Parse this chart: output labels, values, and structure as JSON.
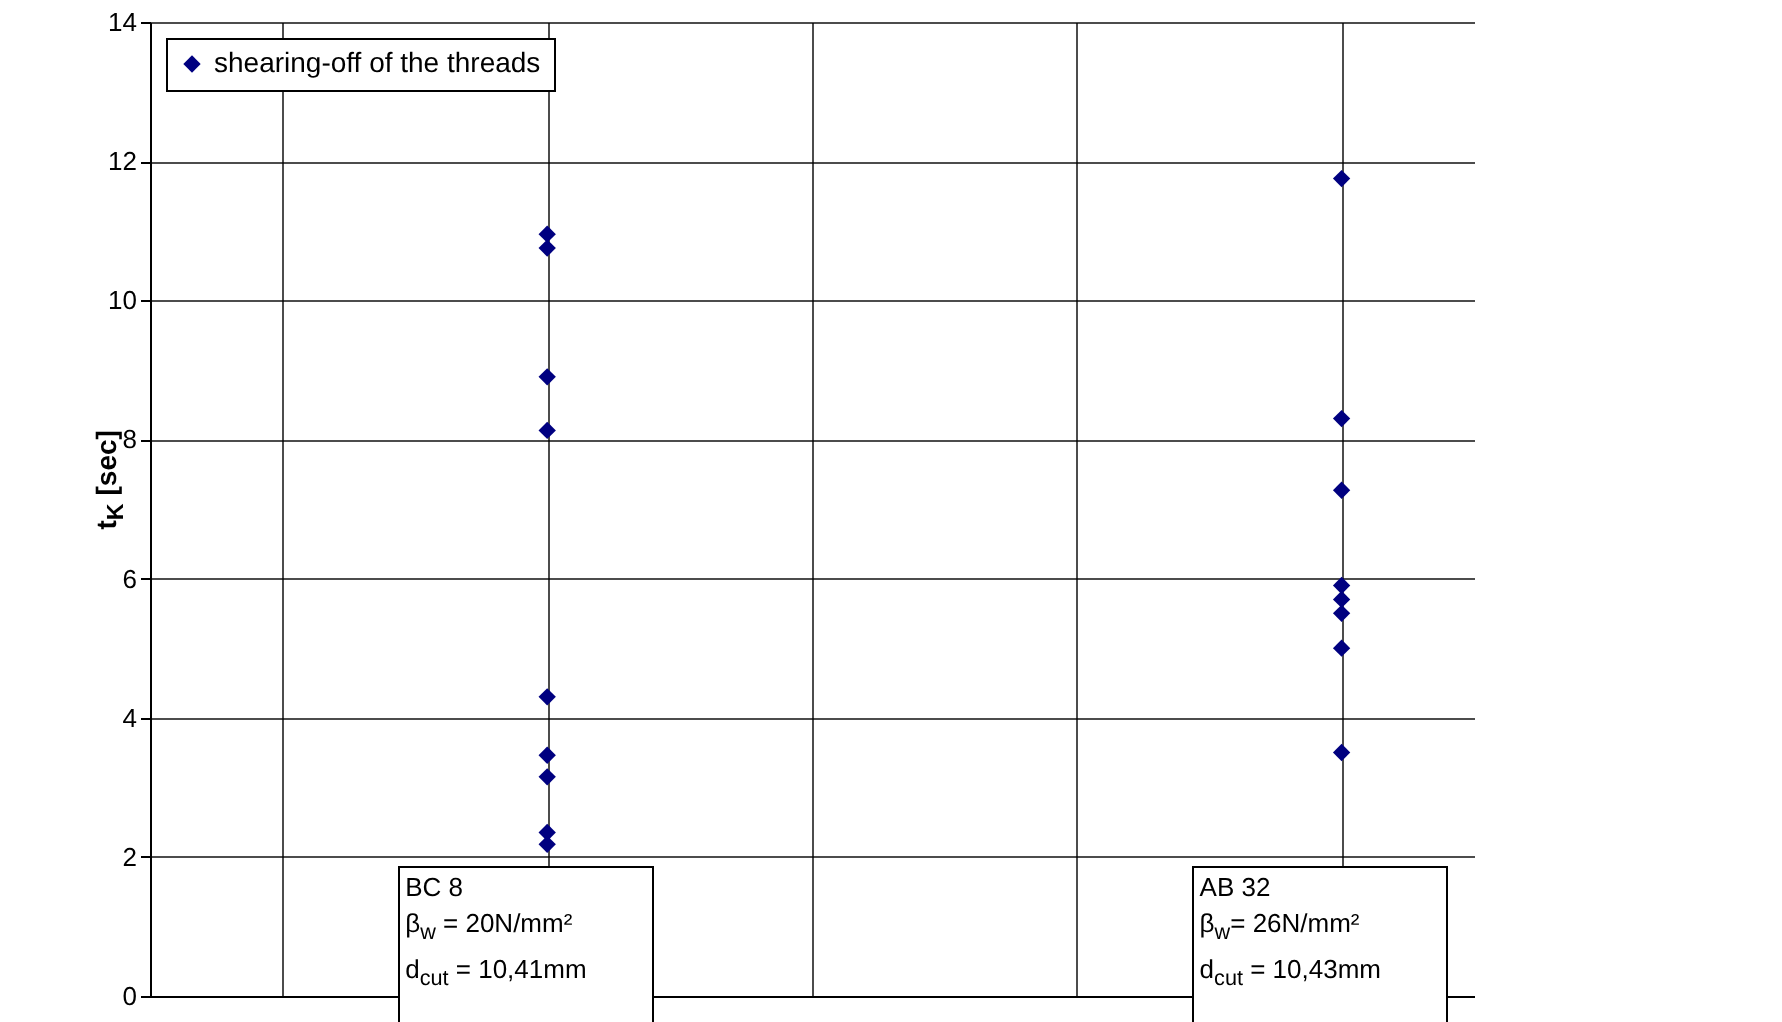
{
  "chart_data": {
    "type": "scatter",
    "ylabel": "t$_{K}$ [sec]",
    "categories": [
      null,
      null,
      null,
      null,
      null
    ],
    "series": [
      {
        "name": "shearing-off of the threads",
        "color": "#000080",
        "values": [
          null,
          10.95,
          null,
          null,
          11.75
        ]
      },
      {
        "color": "#000080",
        "values": [
          null,
          10.75,
          null,
          null,
          8.3
        ]
      },
      {
        "color": "#000080",
        "values": [
          null,
          8.9,
          null,
          null,
          7.27
        ]
      },
      {
        "color": "#000080",
        "values": [
          null,
          8.13,
          null,
          null,
          5.9
        ]
      },
      {
        "color": "#000080",
        "values": [
          null,
          4.3,
          null,
          null,
          5.7
        ]
      },
      {
        "color": "#000080",
        "values": [
          null,
          3.46,
          null,
          null,
          5.5
        ]
      },
      {
        "color": "#000080",
        "values": [
          null,
          3.15,
          null,
          null,
          5.0
        ]
      },
      {
        "color": "#000080",
        "values": [
          null,
          2.35,
          null,
          null,
          3.5
        ]
      },
      {
        "color": "#000080",
        "values": [
          null,
          2.18,
          null,
          null,
          null
        ]
      }
    ],
    "ylim": [
      0,
      14
    ],
    "yticks": [
      0,
      2,
      4,
      6,
      8,
      10,
      12,
      14
    ],
    "tick_labels": "y",
    "grid": true,
    "legend": "top left",
    "marker": "diamond",
    "annotations": [
      "BC 8\nβ$_{w}$ = 20N/mm²\nd$_{cut}$ = 10,41mm",
      "AB 32\nβ$_{w}$= 26N/mm²\nd$_{cut}$ = 10,43mm"
    ]
  }
}
